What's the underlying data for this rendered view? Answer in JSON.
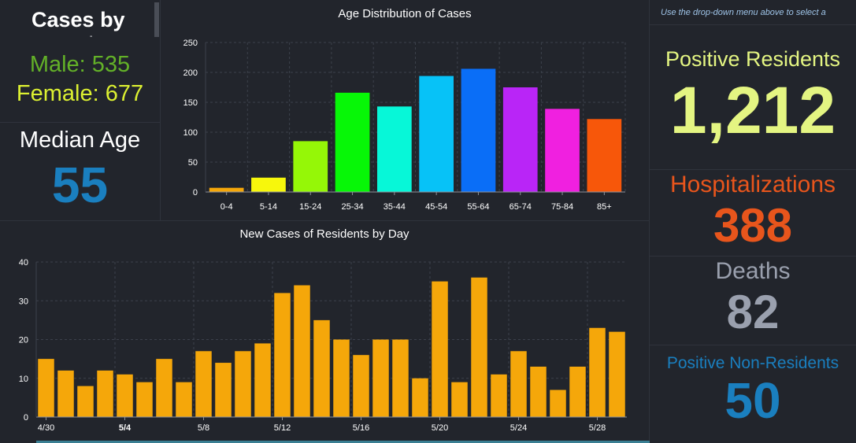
{
  "gender": {
    "title": "Cases by",
    "title_tail": "-",
    "male": "Male: 535",
    "female": "Female: 677"
  },
  "median": {
    "label": "Median Age",
    "value": "55"
  },
  "right": {
    "hint": "Use the drop-down menu above to select a",
    "positive_label": "Positive Residents",
    "positive_value": "1,212",
    "hosp_label": "Hospitalizations",
    "hosp_value": "388",
    "deaths_label": "Deaths",
    "deaths_value": "82",
    "nonres_label": "Positive Non-Residents",
    "nonres_value": "50"
  },
  "chart_data": [
    {
      "type": "bar",
      "title": "Age Distribution of Cases",
      "categories": [
        "0-4",
        "5-14",
        "15-24",
        "25-34",
        "35-44",
        "45-54",
        "55-64",
        "65-74",
        "75-84",
        "85+"
      ],
      "values": [
        7,
        24,
        85,
        166,
        143,
        194,
        206,
        175,
        139,
        122
      ],
      "colors": [
        "#f5a70a",
        "#f7f70c",
        "#95f707",
        "#07f707",
        "#07f7d8",
        "#07c2f7",
        "#0a6ef7",
        "#b925f7",
        "#f020e0",
        "#f7570a"
      ],
      "ylim": [
        0,
        250
      ],
      "yticks": [
        0,
        50,
        100,
        150,
        200,
        250
      ],
      "grid": true
    },
    {
      "type": "bar",
      "title": "New Cases of Residents by Day",
      "categories": [
        "4/30",
        "5/1",
        "5/2",
        "5/3",
        "5/4",
        "5/5",
        "5/6",
        "5/7",
        "5/8",
        "5/9",
        "5/10",
        "5/11",
        "5/12",
        "5/13",
        "5/14",
        "5/15",
        "5/16",
        "5/17",
        "5/18",
        "5/19",
        "5/20",
        "5/21",
        "5/22",
        "5/23",
        "5/24",
        "5/25",
        "5/26",
        "5/27",
        "5/28",
        "5/29"
      ],
      "values": [
        15,
        12,
        8,
        12,
        11,
        9,
        15,
        9,
        17,
        14,
        17,
        19,
        32,
        34,
        25,
        20,
        16,
        20,
        20,
        10,
        35,
        9,
        36,
        11,
        17,
        13,
        7,
        13,
        23,
        22
      ],
      "xtick_labels": [
        "4/30",
        "5/4",
        "5/8",
        "5/12",
        "5/16",
        "5/20",
        "5/24",
        "5/28"
      ],
      "bold_tick": "5/4",
      "bar_color": "#f5a70a",
      "ylim": [
        0,
        40
      ],
      "yticks": [
        0,
        10,
        20,
        30,
        40
      ],
      "grid": true
    }
  ]
}
